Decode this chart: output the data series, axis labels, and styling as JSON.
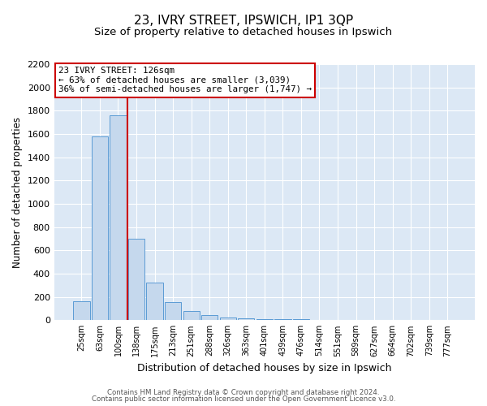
{
  "title1": "23, IVRY STREET, IPSWICH, IP1 3QP",
  "title2": "Size of property relative to detached houses in Ipswich",
  "xlabel": "Distribution of detached houses by size in Ipswich",
  "ylabel": "Number of detached properties",
  "bar_labels": [
    "25sqm",
    "63sqm",
    "100sqm",
    "138sqm",
    "175sqm",
    "213sqm",
    "251sqm",
    "288sqm",
    "326sqm",
    "363sqm",
    "401sqm",
    "439sqm",
    "476sqm",
    "514sqm",
    "551sqm",
    "589sqm",
    "627sqm",
    "664sqm",
    "702sqm",
    "739sqm",
    "777sqm"
  ],
  "bar_values": [
    160,
    1580,
    1760,
    700,
    320,
    155,
    80,
    45,
    20,
    15,
    10,
    10,
    10,
    0,
    0,
    0,
    0,
    0,
    0,
    0,
    0
  ],
  "bar_color": "#c5d8ed",
  "bar_edge_color": "#5b9bd5",
  "vline_color": "#cc0000",
  "vline_x": 2.5,
  "ylim": [
    0,
    2200
  ],
  "yticks": [
    0,
    200,
    400,
    600,
    800,
    1000,
    1200,
    1400,
    1600,
    1800,
    2000,
    2200
  ],
  "annotation_line1": "23 IVRY STREET: 126sqm",
  "annotation_line2": "← 63% of detached houses are smaller (3,039)",
  "annotation_line3": "36% of semi-detached houses are larger (1,747) →",
  "annotation_box_color": "#ffffff",
  "annotation_box_edge": "#cc0000",
  "footer1": "Contains HM Land Registry data © Crown copyright and database right 2024.",
  "footer2": "Contains public sector information licensed under the Open Government Licence v3.0.",
  "bg_color": "#ffffff",
  "plot_bg_color": "#dce8f5",
  "grid_color": "#ffffff",
  "title1_fontsize": 11,
  "title2_fontsize": 9.5
}
